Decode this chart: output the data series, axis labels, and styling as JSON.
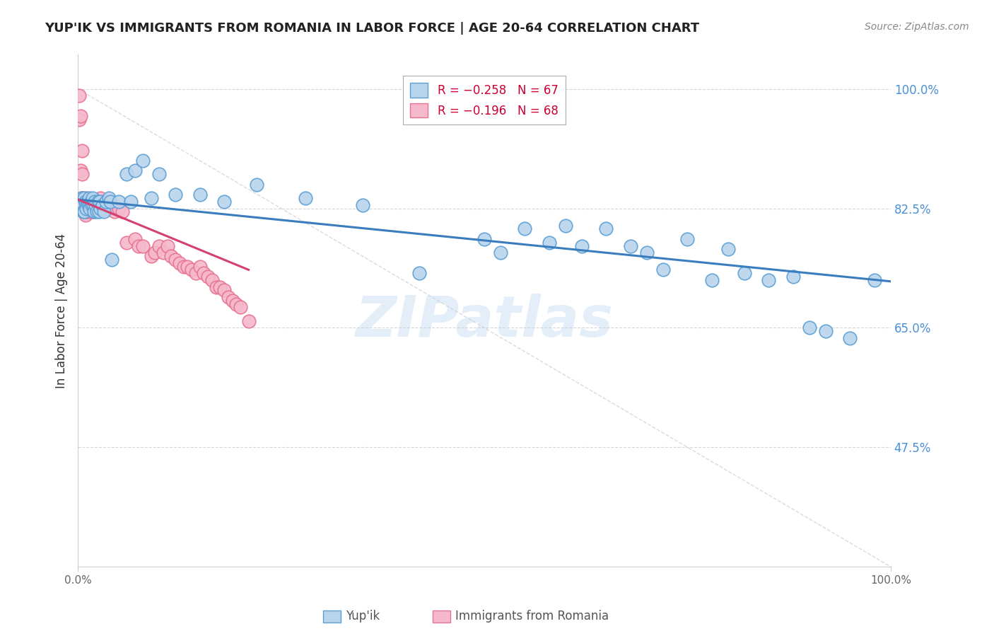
{
  "title": "YUP'IK VS IMMIGRANTS FROM ROMANIA IN LABOR FORCE | AGE 20-64 CORRELATION CHART",
  "source": "Source: ZipAtlas.com",
  "ylabel": "In Labor Force | Age 20-64",
  "xlim": [
    0.0,
    1.0
  ],
  "ylim": [
    0.3,
    1.05
  ],
  "ytick_values": [
    0.475,
    0.65,
    0.825,
    1.0
  ],
  "xtick_values": [
    0.0,
    1.0
  ],
  "xtick_labels": [
    "0.0%",
    "100.0%"
  ],
  "legend_r1": "R = −0.258",
  "legend_n1": "N = 67",
  "legend_r2": "R = −0.196",
  "legend_n2": "N = 68",
  "watermark": "ZIPatlas",
  "series1_color": "#b8d4ed",
  "series1_edge": "#5b9fd4",
  "series2_color": "#f5b8cc",
  "series2_edge": "#e8728f",
  "trendline1_color": "#3a7dbf",
  "trendline2_color": "#d44070",
  "diag_color": "#cccccc",
  "grid_color": "#cccccc",
  "ytick_color": "#4a90d9",
  "background_color": "#ffffff",
  "yup_ik_x": [
    0.002,
    0.003,
    0.005,
    0.006,
    0.007,
    0.008,
    0.008,
    0.009,
    0.01,
    0.01,
    0.012,
    0.013,
    0.014,
    0.015,
    0.015,
    0.016,
    0.017,
    0.018,
    0.019,
    0.02,
    0.021,
    0.022,
    0.023,
    0.025,
    0.026,
    0.027,
    0.028,
    0.03,
    0.032,
    0.035,
    0.038,
    0.04,
    0.042,
    0.05,
    0.06,
    0.065,
    0.07,
    0.08,
    0.09,
    0.1,
    0.12,
    0.15,
    0.18,
    0.22,
    0.28,
    0.35,
    0.42,
    0.5,
    0.52,
    0.55,
    0.58,
    0.6,
    0.62,
    0.65,
    0.68,
    0.7,
    0.72,
    0.75,
    0.78,
    0.8,
    0.82,
    0.85,
    0.88,
    0.9,
    0.92,
    0.95,
    0.98
  ],
  "yup_ik_y": [
    0.835,
    0.83,
    0.84,
    0.83,
    0.82,
    0.84,
    0.82,
    0.835,
    0.83,
    0.825,
    0.835,
    0.83,
    0.84,
    0.83,
    0.825,
    0.835,
    0.83,
    0.84,
    0.83,
    0.82,
    0.835,
    0.83,
    0.82,
    0.835,
    0.82,
    0.835,
    0.825,
    0.83,
    0.82,
    0.835,
    0.84,
    0.835,
    0.75,
    0.835,
    0.875,
    0.835,
    0.88,
    0.895,
    0.84,
    0.875,
    0.845,
    0.845,
    0.835,
    0.86,
    0.84,
    0.83,
    0.73,
    0.78,
    0.76,
    0.795,
    0.775,
    0.8,
    0.77,
    0.795,
    0.77,
    0.76,
    0.735,
    0.78,
    0.72,
    0.765,
    0.73,
    0.72,
    0.725,
    0.65,
    0.645,
    0.635,
    0.72
  ],
  "romania_x": [
    0.001,
    0.002,
    0.002,
    0.003,
    0.003,
    0.004,
    0.004,
    0.005,
    0.005,
    0.005,
    0.006,
    0.006,
    0.007,
    0.007,
    0.008,
    0.008,
    0.009,
    0.009,
    0.01,
    0.01,
    0.011,
    0.012,
    0.013,
    0.014,
    0.015,
    0.016,
    0.017,
    0.018,
    0.019,
    0.02,
    0.022,
    0.025,
    0.028,
    0.03,
    0.033,
    0.036,
    0.04,
    0.045,
    0.05,
    0.055,
    0.06,
    0.07,
    0.075,
    0.08,
    0.09,
    0.095,
    0.1,
    0.105,
    0.11,
    0.115,
    0.12,
    0.125,
    0.13,
    0.135,
    0.14,
    0.145,
    0.15,
    0.155,
    0.16,
    0.165,
    0.17,
    0.175,
    0.18,
    0.185,
    0.19,
    0.195,
    0.2,
    0.21
  ],
  "romania_y": [
    0.835,
    0.99,
    0.955,
    0.96,
    0.88,
    0.84,
    0.835,
    0.91,
    0.875,
    0.84,
    0.835,
    0.825,
    0.835,
    0.82,
    0.835,
    0.82,
    0.825,
    0.815,
    0.84,
    0.82,
    0.83,
    0.835,
    0.82,
    0.825,
    0.835,
    0.82,
    0.825,
    0.83,
    0.82,
    0.825,
    0.835,
    0.83,
    0.84,
    0.835,
    0.835,
    0.825,
    0.83,
    0.82,
    0.825,
    0.82,
    0.775,
    0.78,
    0.77,
    0.77,
    0.755,
    0.76,
    0.77,
    0.76,
    0.77,
    0.755,
    0.75,
    0.745,
    0.74,
    0.74,
    0.735,
    0.73,
    0.74,
    0.73,
    0.725,
    0.72,
    0.71,
    0.71,
    0.705,
    0.695,
    0.69,
    0.685,
    0.68,
    0.66
  ],
  "trendline1_x0": 0.0,
  "trendline1_x1": 1.0,
  "trendline1_y0": 0.838,
  "trendline1_y1": 0.718,
  "trendline2_x0": 0.0,
  "trendline2_x1": 0.21,
  "trendline2_y0": 0.838,
  "trendline2_y1": 0.735
}
